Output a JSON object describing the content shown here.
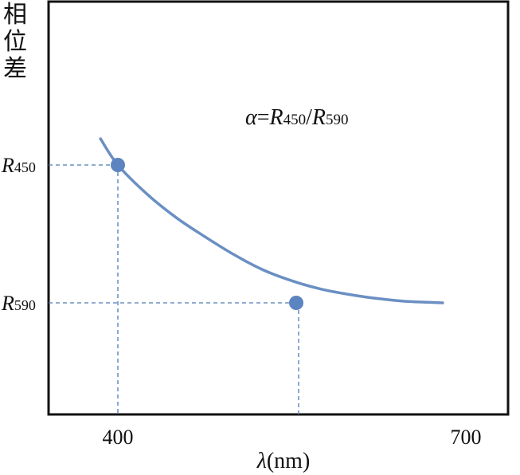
{
  "chart_data": {
    "type": "line",
    "ylabel_chars": [
      "相",
      "位",
      "差"
    ],
    "xlabel_symbol": "λ",
    "xlabel_unit": "(nm)",
    "xticks": [
      "400",
      "700"
    ],
    "ylabel_ticks": [
      {
        "symbol": "R",
        "sub": "450"
      },
      {
        "symbol": "R",
        "sub": "590"
      }
    ],
    "annotation": {
      "alpha": "α",
      "eq": "=",
      "r1": "R",
      "r1_sub": "450",
      "slash": "/",
      "r2": "R",
      "r2_sub": "590"
    },
    "curve": {
      "x": [
        385,
        400,
        425,
        450,
        475,
        500,
        525,
        550,
        575,
        600,
        625,
        650,
        680
      ],
      "y": [
        1.19,
        1.0,
        0.79,
        0.62,
        0.48,
        0.35,
        0.24,
        0.16,
        0.1,
        0.06,
        0.03,
        0.01,
        0.0
      ]
    },
    "points": [
      {
        "x": 400,
        "y": 1.0
      },
      {
        "x": 550,
        "y": 0.0
      }
    ],
    "colors": {
      "curve": "#6a8fc3",
      "point": "#5b84c0",
      "guide": "#4f7ab5",
      "axis": "#111111"
    }
  }
}
